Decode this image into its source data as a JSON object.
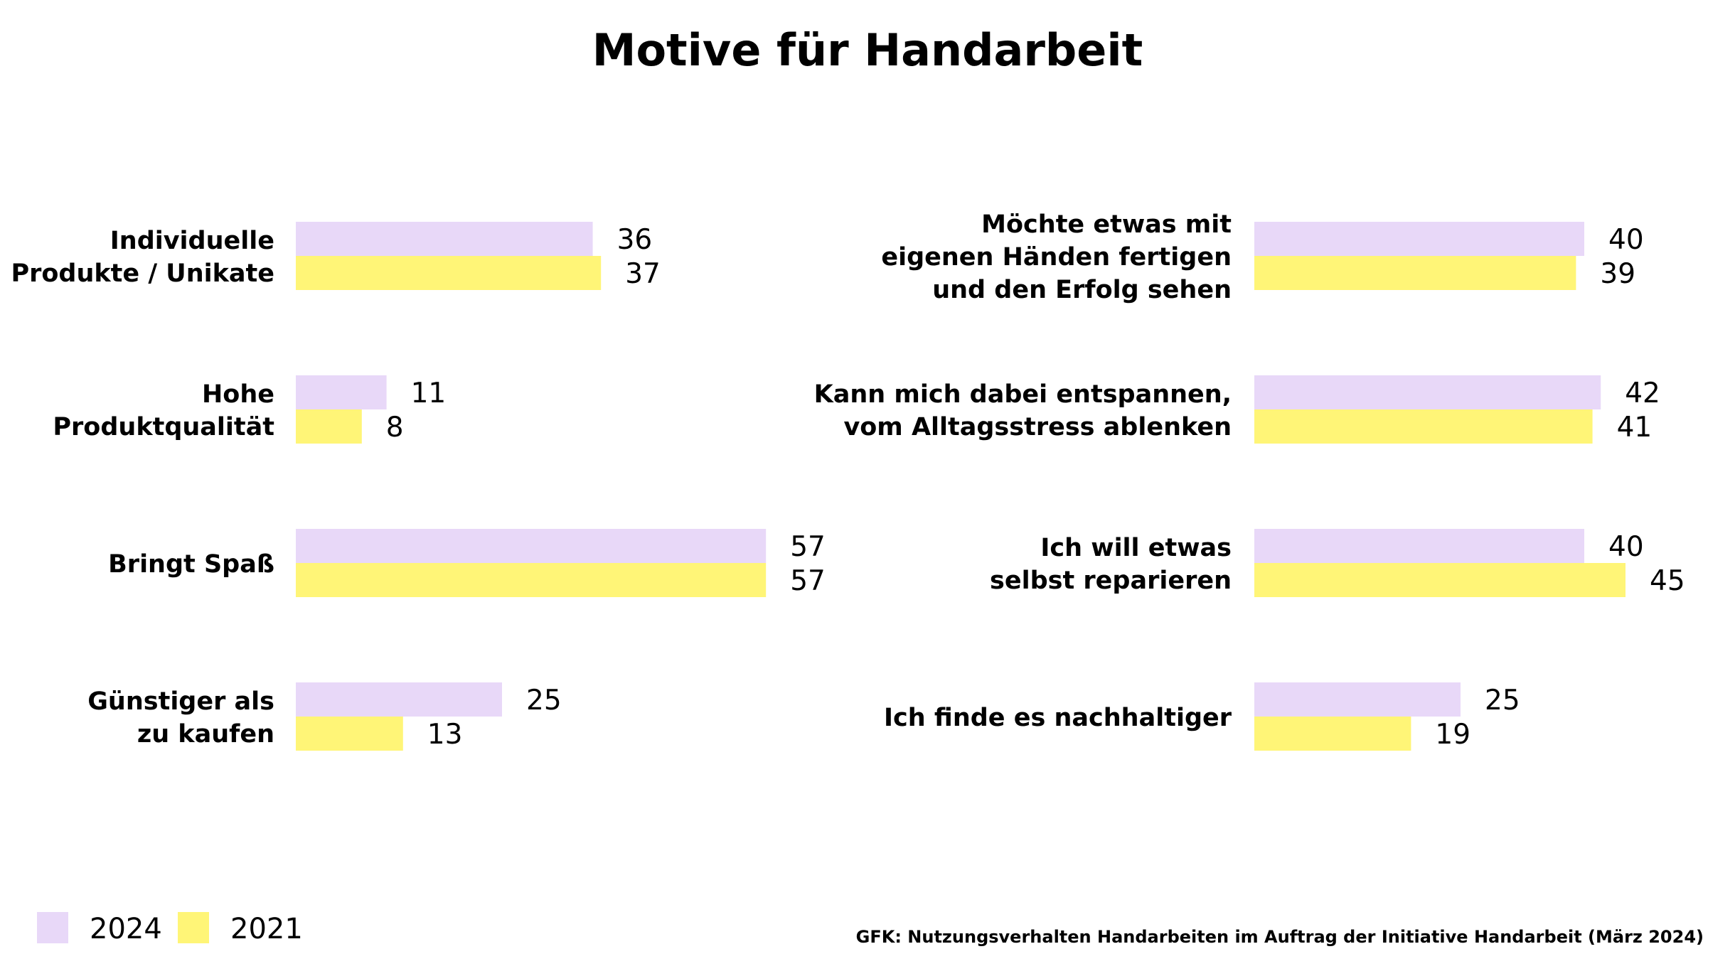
{
  "chart_data": {
    "type": "bar",
    "orientation": "horizontal",
    "title": "Motive für Handarbeit",
    "source": "GFK: Nutzungsverhalten Handarbeiten im Auftrag der Initiative Handarbeit (März 2024)",
    "legend_position": "bottom-left",
    "grid": false,
    "series": [
      {
        "name": "2024",
        "color": "#e8d8f8"
      },
      {
        "name": "2021",
        "color": "#fff577"
      }
    ],
    "panels": [
      {
        "categories": [
          {
            "lines": [
              "Individuelle",
              "Produkte / Unikate"
            ],
            "values": [
              36,
              37
            ]
          },
          {
            "lines": [
              "Hohe",
              "Produktqualität"
            ],
            "values": [
              11,
              8
            ]
          },
          {
            "lines": [
              "Bringt Spaß"
            ],
            "values": [
              57,
              57
            ]
          },
          {
            "lines": [
              "Günstiger als",
              "zu kaufen"
            ],
            "values": [
              25,
              13
            ]
          }
        ]
      },
      {
        "categories": [
          {
            "lines": [
              "Möchte etwas mit",
              "eigenen Händen fertigen",
              "und den Erfolg sehen"
            ],
            "values": [
              40,
              39
            ]
          },
          {
            "lines": [
              "Kann mich dabei entspannen,",
              "vom Alltagsstress ablenken"
            ],
            "values": [
              42,
              41
            ]
          },
          {
            "lines": [
              "Ich will etwas",
              "selbst reparieren"
            ],
            "values": [
              40,
              45
            ]
          },
          {
            "lines": [
              "Ich finde es nachhaltiger"
            ],
            "values": [
              25,
              19
            ]
          }
        ]
      }
    ]
  }
}
